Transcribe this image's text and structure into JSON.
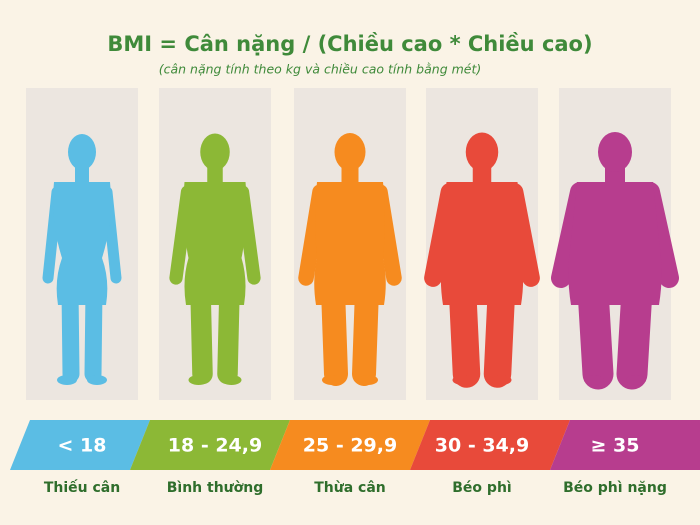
{
  "header": {
    "title": "BMI = Cân nặng / (Chiều cao * Chiều cao)",
    "subtitle": "(cân nặng tính theo kg và chiều cao tính bằng mét)"
  },
  "categories": [
    {
      "range": "< 18",
      "label": "Thiếu cân",
      "color": "#5bbde4"
    },
    {
      "range": "18 - 24,9",
      "label": "Bình thường",
      "color": "#8cb836"
    },
    {
      "range": "25 - 29,9",
      "label": "Thừa cân",
      "color": "#f68b1f"
    },
    {
      "range": "30 - 34,9",
      "label": "Béo phì",
      "color": "#e84a3a"
    },
    {
      "range": "≥ 35",
      "label": "Béo phì nặng",
      "color": "#b73d8e"
    }
  ]
}
